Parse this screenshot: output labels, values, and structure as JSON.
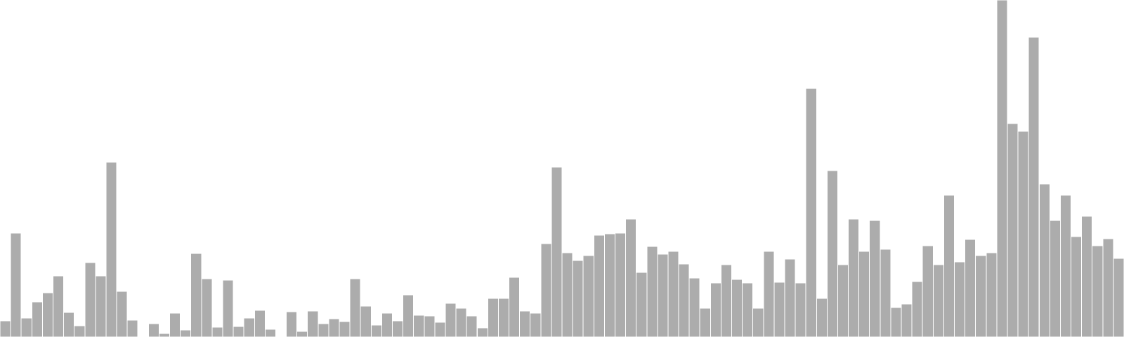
{
  "chart_data": {
    "type": "bar",
    "title": "",
    "xlabel": "",
    "ylabel": "",
    "ylim": [
      0,
      480
    ],
    "grid": false,
    "legend": "none",
    "colors": {
      "bar": "#acacac",
      "bar_edge": "#ffffff",
      "background": "#ffffff"
    },
    "values": [
      23,
      148,
      27,
      50,
      63,
      87,
      35,
      16,
      106,
      87,
      249,
      65,
      24,
      0,
      19,
      5,
      34,
      10,
      119,
      83,
      14,
      81,
      15,
      27,
      38,
      11,
      0,
      36,
      8,
      37,
      19,
      26,
      22,
      83,
      44,
      17,
      34,
      23,
      60,
      31,
      30,
      21,
      48,
      41,
      30,
      13,
      55,
      55,
      85,
      37,
      34,
      133,
      242,
      120,
      109,
      116,
      145,
      147,
      148,
      168,
      92,
      129,
      118,
      122,
      104,
      84,
      41,
      77,
      103,
      82,
      77,
      41,
      122,
      78,
      111,
      77,
      354,
      55,
      237,
      103,
      168,
      122,
      166,
      125,
      42,
      47,
      79,
      130,
      103,
      202,
      107,
      139,
      116,
      120,
      480,
      304,
      293,
      427,
      218,
      166,
      202,
      143,
      172,
      130,
      140,
      112
    ]
  }
}
